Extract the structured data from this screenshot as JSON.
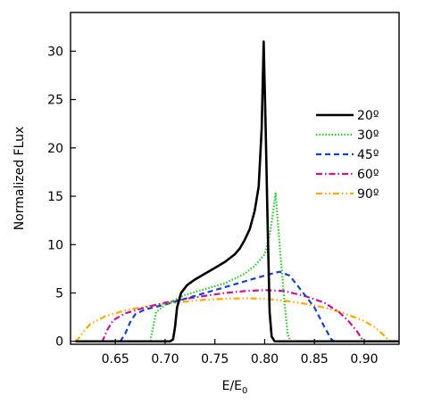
{
  "chart_data": {
    "type": "line",
    "title": "",
    "xlabel": "E/E",
    "xlabel_subscript": "0",
    "ylabel": "Normalized FLux",
    "xlim": [
      0.605,
      0.935
    ],
    "ylim": [
      -0.3,
      34
    ],
    "x_ticks": [
      0.65,
      0.7,
      0.75,
      0.8,
      0.85,
      0.9
    ],
    "x_tick_labels": [
      "0.65",
      "0.70",
      "0.75",
      "0.80",
      "0.85",
      "0.90"
    ],
    "y_ticks": [
      0,
      5,
      10,
      15,
      20,
      25,
      30
    ],
    "y_tick_labels": [
      "0",
      "5",
      "10",
      "15",
      "20",
      "25",
      "30"
    ],
    "grid": false,
    "legend_position": "right",
    "series": [
      {
        "name": "20º",
        "color": "#000000",
        "dash": "solid",
        "width": 2.6,
        "points": [
          [
            0.61,
            0
          ],
          [
            0.705,
            0
          ],
          [
            0.708,
            0.2
          ],
          [
            0.71,
            1.5
          ],
          [
            0.712,
            3.5
          ],
          [
            0.716,
            5.0
          ],
          [
            0.722,
            5.8
          ],
          [
            0.73,
            6.4
          ],
          [
            0.74,
            7.0
          ],
          [
            0.75,
            7.6
          ],
          [
            0.76,
            8.2
          ],
          [
            0.77,
            9.0
          ],
          [
            0.775,
            9.6
          ],
          [
            0.78,
            10.5
          ],
          [
            0.785,
            11.6
          ],
          [
            0.79,
            13.5
          ],
          [
            0.794,
            16.0
          ],
          [
            0.797,
            22.0
          ],
          [
            0.799,
            31.0
          ],
          [
            0.801,
            22.0
          ],
          [
            0.803,
            12.0
          ],
          [
            0.805,
            3.0
          ],
          [
            0.807,
            0.5
          ],
          [
            0.81,
            0
          ],
          [
            0.935,
            0
          ]
        ]
      },
      {
        "name": "30º",
        "color": "#22cc22",
        "dash": "dotted",
        "width": 2.2,
        "points": [
          [
            0.61,
            0
          ],
          [
            0.685,
            0
          ],
          [
            0.688,
            1.5
          ],
          [
            0.691,
            3.0
          ],
          [
            0.7,
            3.8
          ],
          [
            0.72,
            4.8
          ],
          [
            0.74,
            5.4
          ],
          [
            0.76,
            6.0
          ],
          [
            0.78,
            7.0
          ],
          [
            0.79,
            7.8
          ],
          [
            0.8,
            9.0
          ],
          [
            0.805,
            11.0
          ],
          [
            0.808,
            13.0
          ],
          [
            0.811,
            15.3
          ],
          [
            0.815,
            10.0
          ],
          [
            0.82,
            4.0
          ],
          [
            0.823,
            0.8
          ],
          [
            0.826,
            0
          ],
          [
            0.935,
            0
          ]
        ]
      },
      {
        "name": "45º",
        "color": "#1144cc",
        "dash": "dashed",
        "width": 2.2,
        "points": [
          [
            0.61,
            0
          ],
          [
            0.655,
            0
          ],
          [
            0.66,
            0.8
          ],
          [
            0.665,
            2.0
          ],
          [
            0.67,
            2.8
          ],
          [
            0.68,
            3.3
          ],
          [
            0.7,
            3.8
          ],
          [
            0.72,
            4.4
          ],
          [
            0.74,
            5.0
          ],
          [
            0.76,
            5.6
          ],
          [
            0.78,
            6.2
          ],
          [
            0.8,
            6.8
          ],
          [
            0.815,
            7.2
          ],
          [
            0.825,
            6.8
          ],
          [
            0.835,
            5.5
          ],
          [
            0.85,
            3.5
          ],
          [
            0.86,
            1.5
          ],
          [
            0.867,
            0.2
          ],
          [
            0.87,
            0
          ],
          [
            0.935,
            0
          ]
        ]
      },
      {
        "name": "60º",
        "color": "#cc1199",
        "dash": "dashdot",
        "width": 2.2,
        "points": [
          [
            0.61,
            0
          ],
          [
            0.637,
            0
          ],
          [
            0.642,
            1.2
          ],
          [
            0.648,
            2.2
          ],
          [
            0.66,
            2.9
          ],
          [
            0.68,
            3.5
          ],
          [
            0.7,
            4.0
          ],
          [
            0.72,
            4.4
          ],
          [
            0.74,
            4.7
          ],
          [
            0.76,
            5.0
          ],
          [
            0.78,
            5.2
          ],
          [
            0.8,
            5.3
          ],
          [
            0.82,
            5.2
          ],
          [
            0.84,
            4.7
          ],
          [
            0.86,
            4.0
          ],
          [
            0.875,
            3.0
          ],
          [
            0.885,
            2.0
          ],
          [
            0.893,
            1.0
          ],
          [
            0.898,
            0.2
          ],
          [
            0.9,
            0
          ],
          [
            0.935,
            0
          ]
        ]
      },
      {
        "name": "90º",
        "color": "#ffaa00",
        "dash": "dashdotdot",
        "width": 2.2,
        "points": [
          [
            0.61,
            0
          ],
          [
            0.613,
            0.3
          ],
          [
            0.618,
            1.0
          ],
          [
            0.625,
            1.8
          ],
          [
            0.64,
            2.6
          ],
          [
            0.66,
            3.2
          ],
          [
            0.68,
            3.6
          ],
          [
            0.7,
            3.9
          ],
          [
            0.72,
            4.1
          ],
          [
            0.74,
            4.3
          ],
          [
            0.76,
            4.4
          ],
          [
            0.78,
            4.45
          ],
          [
            0.8,
            4.4
          ],
          [
            0.82,
            4.2
          ],
          [
            0.84,
            3.9
          ],
          [
            0.86,
            3.5
          ],
          [
            0.88,
            2.9
          ],
          [
            0.9,
            2.1
          ],
          [
            0.91,
            1.5
          ],
          [
            0.918,
            0.8
          ],
          [
            0.924,
            0.2
          ],
          [
            0.927,
            0
          ],
          [
            0.935,
            0
          ]
        ]
      }
    ]
  }
}
